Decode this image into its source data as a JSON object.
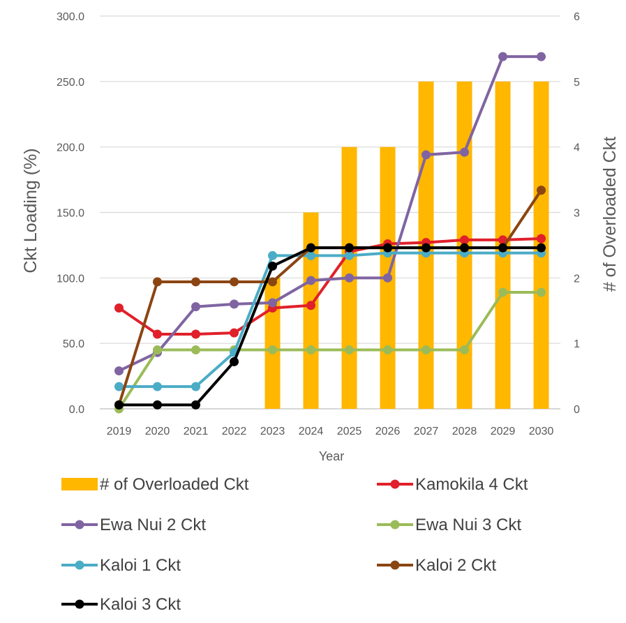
{
  "chart_data": {
    "type": "bar+line",
    "categories": [
      "2019",
      "2020",
      "2021",
      "2022",
      "2023",
      "2024",
      "2025",
      "2026",
      "2027",
      "2028",
      "2029",
      "2030"
    ],
    "xlabel": "Year",
    "ylabel": "Ckt Loading (%)",
    "y2label": "# of Overloaded Ckt",
    "ylim": [
      0,
      300
    ],
    "y2lim": [
      0,
      6
    ],
    "yticks": [
      "0.0",
      "50.0",
      "100.0",
      "150.0",
      "200.0",
      "250.0",
      "300.0"
    ],
    "y2ticks": [
      "0",
      "1",
      "2",
      "3",
      "4",
      "5",
      "6"
    ],
    "grid": true,
    "legend_position": "bottom",
    "bar_series": {
      "name": "# of Overloaded Ckt",
      "axis": "secondary",
      "color": "#FFB700",
      "values": [
        0,
        0,
        0,
        0,
        2,
        3,
        4,
        4,
        5,
        5,
        5,
        5
      ]
    },
    "series": [
      {
        "name": "Kamokila 4 Ckt",
        "color": "#E0202A",
        "values": [
          77,
          57,
          57,
          58,
          77,
          79,
          120,
          126,
          127,
          129,
          129,
          130
        ]
      },
      {
        "name": "Ewa Nui 2 Ckt",
        "color": "#8064A2",
        "values": [
          29,
          43,
          78,
          80,
          81,
          98,
          100,
          100,
          194,
          196,
          269,
          269
        ]
      },
      {
        "name": "Ewa Nui 3 Ckt",
        "color": "#9BBB59",
        "values": [
          0,
          45,
          45,
          45,
          45,
          45,
          45,
          45,
          45,
          45,
          89,
          89
        ]
      },
      {
        "name": "Kaloi 1 Ckt",
        "color": "#4BACC6",
        "values": [
          17,
          17,
          17,
          43,
          117,
          117,
          117,
          119,
          119,
          119,
          119,
          119
        ]
      },
      {
        "name": "Kaloi 2 Ckt",
        "color": "#8B4513",
        "values": [
          3,
          97,
          97,
          97,
          97,
          123,
          123,
          123,
          123,
          123,
          123,
          167
        ]
      },
      {
        "name": "Kaloi 3 Ckt",
        "color": "#000000",
        "values": [
          3,
          3,
          3,
          36,
          109,
          123,
          123,
          123,
          123,
          123,
          123,
          123
        ]
      }
    ]
  }
}
